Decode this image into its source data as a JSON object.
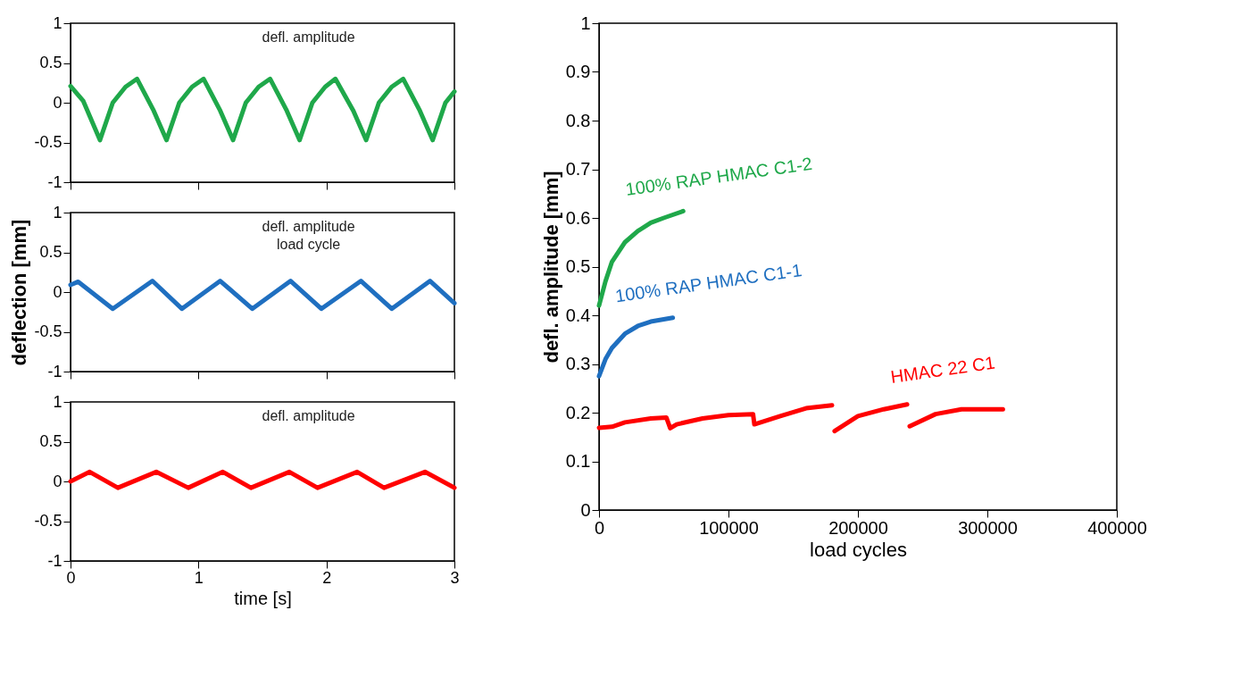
{
  "chart_data": [
    {
      "type": "line",
      "xlim": [
        0,
        3
      ],
      "ylim": [
        -1,
        1
      ],
      "xticks": [
        0,
        1,
        2,
        3
      ],
      "yticks": [
        -1,
        -0.5,
        0,
        0.5,
        1
      ],
      "tick_labels": "y",
      "annotations": [
        "defl. amplitude"
      ],
      "series": [
        {
          "color": "#1fa84a",
          "x": [
            0,
            0.1,
            0.23,
            0.33,
            0.43,
            0.52,
            0.65,
            0.75,
            0.85,
            0.95,
            1.04,
            1.17,
            1.27,
            1.37,
            1.47,
            1.56,
            1.69,
            1.79,
            1.89,
            1.99,
            2.07,
            2.21,
            2.31,
            2.41,
            2.51,
            2.6,
            2.73,
            2.83,
            2.93,
            3
          ],
          "values": [
            0.21,
            0.02,
            -0.47,
            0.0,
            0.2,
            0.3,
            -0.1,
            -0.47,
            0.0,
            0.2,
            0.3,
            -0.1,
            -0.47,
            0.0,
            0.2,
            0.3,
            -0.1,
            -0.47,
            0.0,
            0.2,
            0.3,
            -0.1,
            -0.47,
            0.0,
            0.2,
            0.3,
            -0.1,
            -0.47,
            0.0,
            0.14
          ]
        }
      ]
    },
    {
      "type": "line",
      "xlim": [
        0,
        3
      ],
      "ylim": [
        -1,
        1
      ],
      "xticks": [
        0,
        1,
        2,
        3
      ],
      "yticks": [
        -1,
        -0.5,
        0,
        0.5,
        1
      ],
      "tick_labels": "y",
      "ylabel": "deflection [mm]",
      "annotations": [
        "defl. amplitude",
        "load cycle"
      ],
      "series": [
        {
          "color": "#1f6fc0",
          "x": [
            0,
            0.06,
            0.33,
            0.64,
            0.87,
            1.17,
            1.42,
            1.72,
            1.96,
            2.27,
            2.51,
            2.81,
            3
          ],
          "values": [
            0.09,
            0.13,
            -0.21,
            0.14,
            -0.21,
            0.14,
            -0.21,
            0.14,
            -0.21,
            0.14,
            -0.21,
            0.14,
            -0.14
          ]
        }
      ]
    },
    {
      "type": "line",
      "xlim": [
        0,
        3
      ],
      "ylim": [
        -1,
        1
      ],
      "xticks": [
        0,
        1,
        2,
        3
      ],
      "yticks": [
        -1,
        -0.5,
        0,
        0.5,
        1
      ],
      "xlabel": "time [s]",
      "annotations": [
        "defl. amplitude"
      ],
      "series": [
        {
          "color": "#ff0000",
          "x": [
            0,
            0.15,
            0.37,
            0.67,
            0.92,
            1.19,
            1.41,
            1.71,
            1.93,
            2.24,
            2.45,
            2.77,
            3
          ],
          "values": [
            0.0,
            0.12,
            -0.08,
            0.12,
            -0.08,
            0.12,
            -0.08,
            0.12,
            -0.08,
            0.12,
            -0.08,
            0.12,
            -0.08
          ]
        }
      ]
    },
    {
      "type": "line",
      "xlim": [
        0,
        400000
      ],
      "ylim": [
        0,
        1
      ],
      "xticks": [
        0,
        100000,
        200000,
        300000,
        400000
      ],
      "yticks": [
        0,
        0.1,
        0.2,
        0.3,
        0.4,
        0.5,
        0.6,
        0.7,
        0.8,
        0.9,
        1
      ],
      "xlabel": "load cycles",
      "ylabel": "defl. amplitude [mm]",
      "series": [
        {
          "name": "100% RAP HMAC C1-2",
          "color": "#1fa84a",
          "x": [
            0,
            5000,
            10000,
            20000,
            30000,
            40000,
            50000,
            65000
          ],
          "values": [
            0.42,
            0.47,
            0.51,
            0.55,
            0.573,
            0.59,
            0.6,
            0.614
          ]
        },
        {
          "name": "100% RAP HMAC C1-1",
          "color": "#1f6fc0",
          "x": [
            0,
            5000,
            10000,
            20000,
            30000,
            40000,
            57000
          ],
          "values": [
            0.275,
            0.31,
            0.333,
            0.362,
            0.378,
            0.387,
            0.395
          ]
        },
        {
          "name": "HMAC 22 C1",
          "color": "#ff0000",
          "x": [
            0,
            10000,
            20000,
            40000,
            52000,
            55000,
            60000,
            80000,
            100000,
            119000,
            120000,
            140000,
            160000,
            180000,
            181000,
            182000,
            200000,
            220000,
            238000,
            239000,
            240000,
            260000,
            280000,
            300000,
            312000
          ],
          "values": [
            0.169,
            0.171,
            0.18,
            0.188,
            0.19,
            0.168,
            0.176,
            0.188,
            0.195,
            0.197,
            0.176,
            0.193,
            0.209,
            0.215,
            null,
            0.162,
            0.193,
            0.207,
            0.217,
            null,
            0.172,
            0.197,
            0.207,
            0.207,
            0.207
          ]
        }
      ]
    }
  ]
}
